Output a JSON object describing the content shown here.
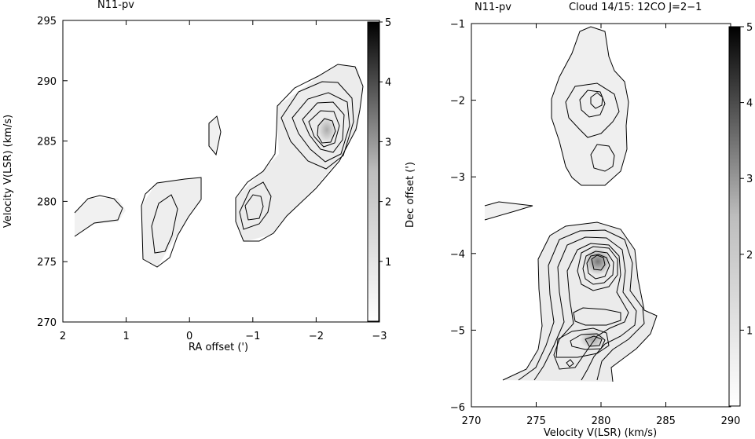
{
  "chart_data": [
    {
      "type": "contour",
      "title": "N11-pv",
      "subtitle": "",
      "xlabel": "RA offset (')",
      "ylabel": "Velocity V(LSR) (km/s)",
      "xlim": [
        2,
        -3
      ],
      "ylim": [
        270,
        295
      ],
      "xticks": [
        2,
        1,
        0,
        -1,
        -2,
        -3
      ],
      "xtick_labels": [
        "2",
        "1",
        "0",
        "−1",
        "−2",
        "−3"
      ],
      "yticks": [
        270,
        275,
        280,
        285,
        290,
        295
      ],
      "ytick_labels": [
        "270",
        "275",
        "280",
        "285",
        "290",
        "295"
      ],
      "colorbar": {
        "range": [
          0,
          5
        ],
        "ticks": [
          1,
          2,
          3,
          4,
          5
        ],
        "tick_labels": [
          "1",
          "2",
          "3",
          "4",
          "5"
        ],
        "label": ""
      },
      "peaks": [
        {
          "x": 1.5,
          "y": 278.8,
          "value": 1.0
        },
        {
          "x": 0.4,
          "y": 278.2,
          "value": 1.5
        },
        {
          "x": -0.55,
          "y": 285.6,
          "value": 1.0
        },
        {
          "x": -1.1,
          "y": 279.6,
          "value": 2.5
        },
        {
          "x": -2.3,
          "y": 285.5,
          "value": 3.5
        }
      ]
    },
    {
      "type": "contour",
      "title": "N11-pv",
      "subtitle": "Cloud 14/15: 12CO J=2−1",
      "xlabel": "Velocity V(LSR) (km/s)",
      "ylabel": "Dec offset (')",
      "xlim": [
        270,
        290
      ],
      "ylim": [
        -6,
        -1
      ],
      "xticks": [
        270,
        275,
        280,
        285,
        290
      ],
      "xtick_labels": [
        "270",
        "275",
        "280",
        "285",
        "290"
      ],
      "yticks": [
        -6,
        -5,
        -4,
        -3,
        -2,
        -1
      ],
      "ytick_labels": [
        "−6",
        "−5",
        "−4",
        "−3",
        "−2",
        "−1"
      ],
      "colorbar": {
        "range": [
          0,
          5
        ],
        "ticks": [
          1,
          2,
          3,
          4,
          5
        ],
        "tick_labels": [
          "1",
          "2",
          "3",
          "4",
          "5"
        ],
        "label": ""
      },
      "peaks": [
        {
          "x": 279.8,
          "y": -2.0,
          "value": 2.0
        },
        {
          "x": 279.8,
          "y": -2.75,
          "value": 1.0
        },
        {
          "x": 272.5,
          "y": -3.4,
          "value": 0.5
        },
        {
          "x": 279.8,
          "y": -4.0,
          "value": 4.5
        },
        {
          "x": 279.0,
          "y": -5.15,
          "value": 3.0
        },
        {
          "x": 277.8,
          "y": -5.45,
          "value": 1.5
        }
      ]
    }
  ]
}
